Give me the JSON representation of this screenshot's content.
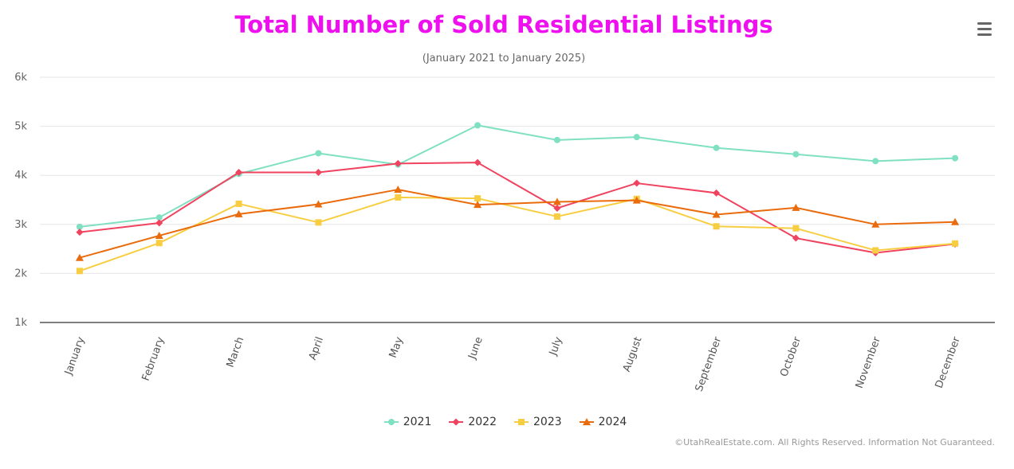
{
  "header": {
    "title": "Total Number of Sold Residential Listings",
    "subtitle": "(January 2021 to January 2025)"
  },
  "menu": {
    "icon": "hamburger-menu-icon"
  },
  "credits": "©UtahRealEstate.com. All Rights Reserved. Information Not Guaranteed.",
  "chart_data": {
    "type": "line",
    "title": "Total Number of Sold Residential Listings",
    "subtitle": "(January 2021 to January 2025)",
    "categories": [
      "January",
      "February",
      "March",
      "April",
      "May",
      "June",
      "July",
      "August",
      "September",
      "October",
      "November",
      "December"
    ],
    "ylim": [
      1000,
      6000
    ],
    "yticks": [
      {
        "value": 1000,
        "label": "1k"
      },
      {
        "value": 2000,
        "label": "2k"
      },
      {
        "value": 3000,
        "label": "3k"
      },
      {
        "value": 4000,
        "label": "4k"
      },
      {
        "value": 5000,
        "label": "5k"
      },
      {
        "value": 6000,
        "label": "6k"
      }
    ],
    "grid": true,
    "legend": "bottom-center",
    "series": [
      {
        "name": "2021",
        "color": "#7fe0c2",
        "marker": "circle",
        "values": [
          2950,
          3140,
          4030,
          4450,
          4220,
          5020,
          4720,
          4780,
          4560,
          4430,
          4290,
          4350
        ]
      },
      {
        "name": "2022",
        "color": "#f0435f",
        "marker": "diamond",
        "values": [
          2840,
          3030,
          4060,
          4060,
          4240,
          4260,
          3330,
          3840,
          3640,
          2720,
          2420,
          2600
        ]
      },
      {
        "name": "2023",
        "color": "#f7ce42",
        "marker": "square",
        "values": [
          2050,
          2620,
          3420,
          3040,
          3550,
          3530,
          3160,
          3520,
          2960,
          2920,
          2470,
          2610
        ]
      },
      {
        "name": "2024",
        "color": "#ea6b0c",
        "marker": "triangle",
        "values": [
          2320,
          2770,
          3210,
          3410,
          3710,
          3400,
          3460,
          3490,
          3200,
          3340,
          3000,
          3050
        ]
      }
    ]
  }
}
